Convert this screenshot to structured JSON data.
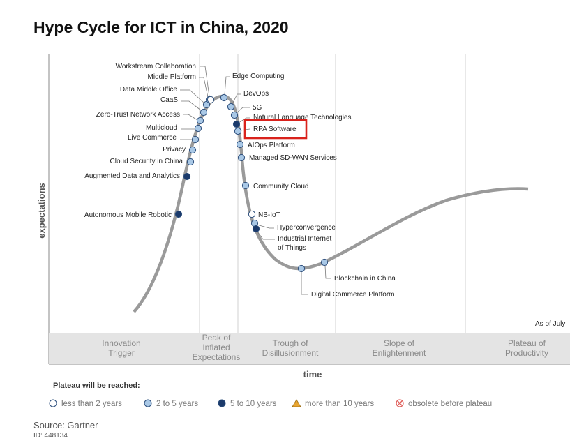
{
  "chart_data": {
    "type": "hype-cycle",
    "title": "Hype Cycle for ICT in China, 2020",
    "xlabel": "time",
    "ylabel": "expectations",
    "as_of": "As of July",
    "phases": [
      "Innovation Trigger",
      "Peak of Inflated Expectations",
      "Trough of Disillusionment",
      "Slope of Enlightenment",
      "Plateau of Productivity"
    ],
    "legend_title": "Plateau will be reached:",
    "legend": [
      {
        "key": "lt2",
        "label": "less than 2 years"
      },
      {
        "key": "2to5",
        "label": "2 to 5 years"
      },
      {
        "key": "5to10",
        "label": "5 to 10 years"
      },
      {
        "key": "gt10",
        "label": "more than 10 years"
      },
      {
        "key": "obsolete",
        "label": "obsolete before plateau"
      }
    ],
    "colors": {
      "lt2": "#ffffff",
      "2to5": "#a9c8e6",
      "5to10": "#1b3a6b",
      "gt10": "#e8a531",
      "obsolete": "#e0605c",
      "highlight": "#d9221c",
      "curve": "#9a9a9a"
    },
    "technologies": [
      {
        "name": "Autonomous Mobile Robotic",
        "side": "left",
        "category": "5to10"
      },
      {
        "name": "Augmented Data and Analytics",
        "side": "left",
        "category": "5to10"
      },
      {
        "name": "Cloud Security in China",
        "side": "left",
        "category": "2to5"
      },
      {
        "name": "Privacy",
        "side": "left",
        "category": "2to5"
      },
      {
        "name": "Live Commerce",
        "side": "left",
        "category": "2to5"
      },
      {
        "name": "Multicloud",
        "side": "left",
        "category": "2to5"
      },
      {
        "name": "Zero-Trust Network Access",
        "side": "left",
        "category": "2to5"
      },
      {
        "name": "CaaS",
        "side": "left",
        "category": "2to5"
      },
      {
        "name": "Data Middle Office",
        "side": "left",
        "category": "2to5"
      },
      {
        "name": "Middle Platform",
        "side": "left",
        "category": "2to5"
      },
      {
        "name": "Workstream Collaboration",
        "side": "left",
        "category": "lt2"
      },
      {
        "name": "Edge Computing",
        "side": "right",
        "category": "2to5"
      },
      {
        "name": "DevOps",
        "side": "right",
        "category": "2to5"
      },
      {
        "name": "5G",
        "side": "right",
        "category": "2to5"
      },
      {
        "name": "Natural Language Technologies",
        "side": "right",
        "category": "5to10"
      },
      {
        "name": "RPA Software",
        "side": "right",
        "category": "2to5",
        "highlighted": true
      },
      {
        "name": "AIOps Platform",
        "side": "right",
        "category": "2to5"
      },
      {
        "name": "Managed SD-WAN Services",
        "side": "right",
        "category": "2to5"
      },
      {
        "name": "Community Cloud",
        "side": "right",
        "category": "2to5"
      },
      {
        "name": "NB-IoT",
        "side": "right",
        "category": "lt2"
      },
      {
        "name": "Hyperconvergence",
        "side": "right",
        "category": "2to5"
      },
      {
        "name": "Industrial Internet of Things",
        "side": "right",
        "category": "5to10"
      },
      {
        "name": "Digital Commerce Platform",
        "side": "right",
        "category": "2to5"
      },
      {
        "name": "Blockchain in China",
        "side": "right",
        "category": "2to5"
      }
    ]
  },
  "footer": {
    "source": "Source: Gartner",
    "doc_id": "ID: 448134"
  }
}
